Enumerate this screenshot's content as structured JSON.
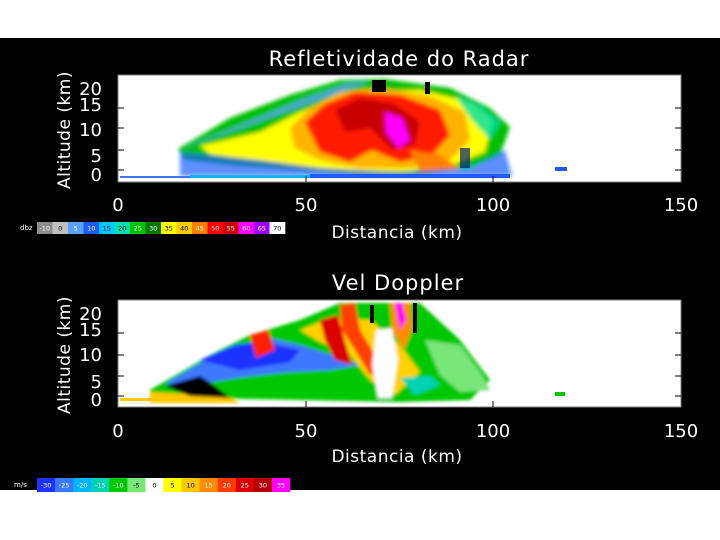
{
  "chart_data": [
    {
      "type": "heatmap",
      "title": "Refletividade do Radar",
      "xlabel": "Distancia (km)",
      "ylabel": "Altitude (km)",
      "xlim": [
        0,
        150
      ],
      "ylim": [
        0,
        20
      ],
      "x_ticks": [
        "0",
        "50",
        "100",
        "150"
      ],
      "y_ticks": [
        "0",
        "5",
        "10",
        "15",
        "20"
      ],
      "colorbar": {
        "unit": "dbz",
        "labels": [
          "-10",
          "0",
          "5",
          "10",
          "15",
          "20",
          "25",
          "30",
          "35",
          "40",
          "45",
          "50",
          "55",
          "60",
          "65",
          "70"
        ],
        "colors": [
          "#8c8c8c",
          "#bfbfbf",
          "#5aa0ff",
          "#1e5aff",
          "#00c8ff",
          "#00e0b0",
          "#00c000",
          "#007800",
          "#ffff00",
          "#ffc800",
          "#ff8000",
          "#ff0000",
          "#c80000",
          "#ff00ff",
          "#a000ff",
          "#ffffff"
        ]
      }
    },
    {
      "type": "heatmap",
      "title": "Vel Doppler",
      "xlabel": "Distancia (km)",
      "ylabel": "Altitude (km)",
      "xlim": [
        0,
        150
      ],
      "ylim": [
        0,
        20
      ],
      "x_ticks": [
        "0",
        "50",
        "100",
        "150"
      ],
      "y_ticks": [
        "0",
        "5",
        "10",
        "15",
        "20"
      ],
      "colorbar": {
        "unit": "m/s",
        "labels": [
          "-30",
          "-25",
          "-20",
          "-15",
          "-10",
          "-5",
          "0",
          "5",
          "10",
          "15",
          "20",
          "25",
          "30",
          "35"
        ],
        "colors": [
          "#1e32ff",
          "#3c78ff",
          "#00b4ff",
          "#00d2b4",
          "#00c800",
          "#78e678",
          "#ffffff",
          "#ffff00",
          "#ffc800",
          "#ff8c00",
          "#ff3c00",
          "#dc0000",
          "#b40000",
          "#ff00ff"
        ]
      }
    }
  ]
}
